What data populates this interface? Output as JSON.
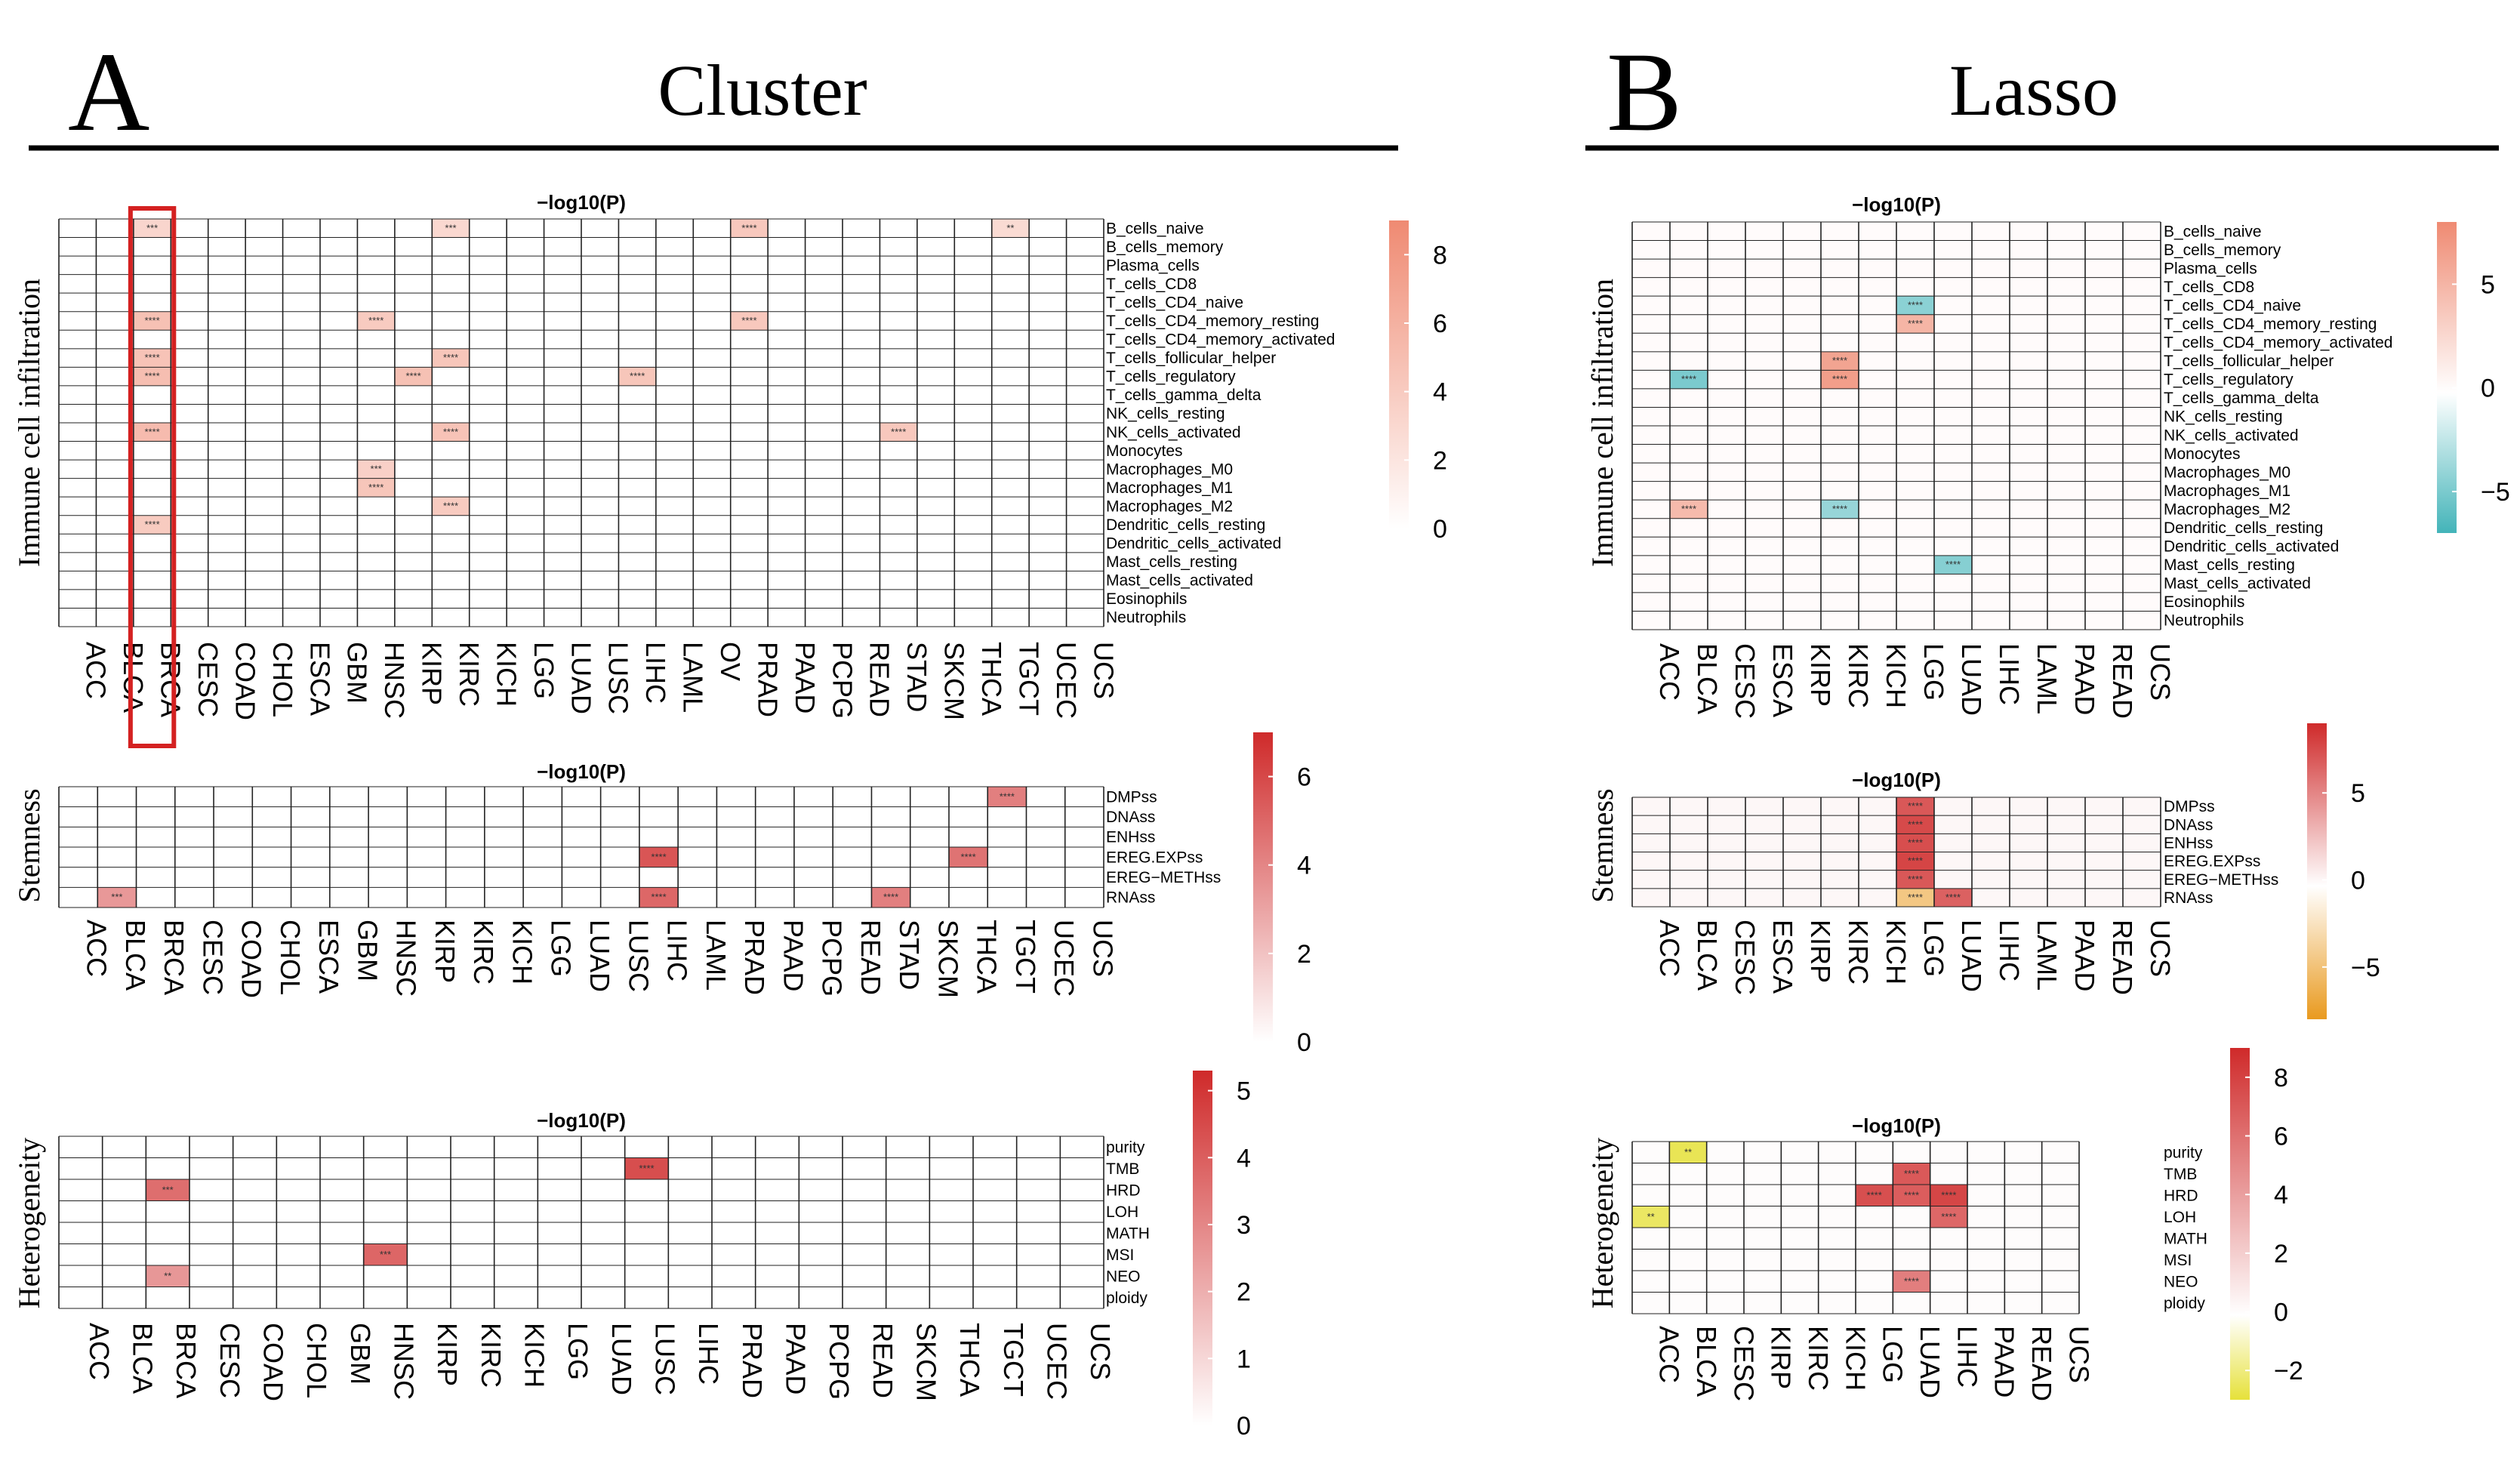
{
  "panels": [
    {
      "letter": "A",
      "title": "Cluster"
    },
    {
      "letter": "B",
      "title": "Lasso"
    }
  ],
  "chart_data": [
    {
      "type": "heatmap",
      "id": "A1",
      "panel": "A",
      "title": "−log10(P)",
      "ylabel": "Immune cell infiltration",
      "colorscale": "white-to-salmon",
      "legend_ticks": [
        0,
        2,
        4,
        6,
        8
      ],
      "vmin": 0,
      "vmax": 9,
      "rows": [
        "B_cells_naive",
        "B_cells_memory",
        "Plasma_cells",
        "T_cells_CD8",
        "T_cells_CD4_naive",
        "T_cells_CD4_memory_resting",
        "T_cells_CD4_memory_activated",
        "T_cells_follicular_helper",
        "T_cells_regulatory",
        "T_cells_gamma_delta",
        "NK_cells_resting",
        "NK_cells_activated",
        "Monocytes",
        "Macrophages_M0",
        "Macrophages_M1",
        "Macrophages_M2",
        "Dendritic_cells_resting",
        "Dendritic_cells_activated",
        "Mast_cells_resting",
        "Mast_cells_activated",
        "Eosinophils",
        "Neutrophils"
      ],
      "columns": [
        "ACC",
        "BLCA",
        "BRCA",
        "CESC",
        "COAD",
        "CHOL",
        "ESCA",
        "GBM",
        "HNSC",
        "KIRP",
        "KIRC",
        "KICH",
        "LGG",
        "LUAD",
        "LUSC",
        "LIHC",
        "LAML",
        "OV",
        "PRAD",
        "PAAD",
        "PCPG",
        "READ",
        "STAD",
        "SKCM",
        "THCA",
        "TGCT",
        "UCEC",
        "UCS"
      ],
      "highlight_column": "BRCA",
      "approximate_nonzero_cells": [
        [
          "B_cells_naive",
          "BRCA",
          3.2
        ],
        [
          "B_cells_naive",
          "KIRC",
          3.0
        ],
        [
          "B_cells_naive",
          "PRAD",
          4.2
        ],
        [
          "B_cells_naive",
          "TGCT",
          2.8
        ],
        [
          "T_cells_CD4_memory_resting",
          "BRCA",
          4.8
        ],
        [
          "T_cells_CD4_memory_resting",
          "HNSC",
          4.0
        ],
        [
          "T_cells_CD4_memory_resting",
          "PRAD",
          4.2
        ],
        [
          "T_cells_follicular_helper",
          "BRCA",
          4.6
        ],
        [
          "T_cells_follicular_helper",
          "KIRC",
          4.4
        ],
        [
          "T_cells_regulatory",
          "BRCA",
          5.0
        ],
        [
          "T_cells_regulatory",
          "KIRP",
          4.8
        ],
        [
          "T_cells_regulatory",
          "LIHC",
          4.4
        ],
        [
          "NK_cells_activated",
          "BRCA",
          5.2
        ],
        [
          "NK_cells_activated",
          "KIRC",
          4.6
        ],
        [
          "NK_cells_activated",
          "STAD",
          4.2
        ],
        [
          "Macrophages_M0",
          "HNSC",
          3.6
        ],
        [
          "Macrophages_M1",
          "HNSC",
          4.4
        ],
        [
          "Macrophages_M2",
          "KIRC",
          4.0
        ],
        [
          "Dendritic_cells_resting",
          "BRCA",
          4.0
        ]
      ]
    },
    {
      "type": "heatmap",
      "id": "A2",
      "panel": "A",
      "title": "−log10(P)",
      "ylabel": "Stemness",
      "colorscale": "white-to-red",
      "legend_ticks": [
        0,
        2,
        4,
        6
      ],
      "vmin": 0,
      "vmax": 7,
      "rows": [
        "DMPss",
        "DNAss",
        "ENHss",
        "EREG.EXPss",
        "EREG−METHss",
        "RNAss"
      ],
      "columns": [
        "ACC",
        "BLCA",
        "BRCA",
        "CESC",
        "COAD",
        "CHOL",
        "ESCA",
        "GBM",
        "HNSC",
        "KIRP",
        "KIRC",
        "KICH",
        "LGG",
        "LUAD",
        "LUSC",
        "LIHC",
        "LAML",
        "PRAD",
        "PAAD",
        "PCPG",
        "READ",
        "STAD",
        "SKCM",
        "THCA",
        "TGCT",
        "UCEC",
        "UCS"
      ],
      "approximate_nonzero_cells": [
        [
          "DMPss",
          "TGCT",
          4.2
        ],
        [
          "EREG.EXPss",
          "LIHC",
          5.6
        ],
        [
          "EREG.EXPss",
          "THCA",
          4.6
        ],
        [
          "RNAss",
          "LIHC",
          5.0
        ],
        [
          "RNAss",
          "STAD",
          4.2
        ],
        [
          "RNAss",
          "BLCA",
          3.4
        ]
      ]
    },
    {
      "type": "heatmap",
      "id": "A3",
      "panel": "A",
      "title": "−log10(P)",
      "ylabel": "Heterogeneity",
      "colorscale": "white-to-red",
      "legend_ticks": [
        0,
        1,
        2,
        3,
        4,
        5
      ],
      "vmin": 0,
      "vmax": 5.3,
      "rows": [
        "purity",
        "TMB",
        "HRD",
        "LOH",
        "MATH",
        "MSI",
        "NEO",
        "ploidy"
      ],
      "columns": [
        "ACC",
        "BLCA",
        "BRCA",
        "CESC",
        "COAD",
        "CHOL",
        "GBM",
        "HNSC",
        "KIRP",
        "KIRC",
        "KICH",
        "LGG",
        "LUAD",
        "LUSC",
        "LIHC",
        "PRAD",
        "PAAD",
        "PCPG",
        "READ",
        "SKCM",
        "THCA",
        "TGCT",
        "UCEC",
        "UCS"
      ],
      "approximate_nonzero_cells": [
        [
          "TMB",
          "LUSC",
          4.4
        ],
        [
          "HRD",
          "BRCA",
          3.6
        ],
        [
          "MSI",
          "HNSC",
          3.8
        ],
        [
          "NEO",
          "BRCA",
          2.6
        ]
      ]
    },
    {
      "type": "heatmap",
      "id": "B1",
      "panel": "B",
      "title": "−log10(P)",
      "ylabel": "Immune cell infiltration",
      "colorscale": "teal-white-salmon",
      "legend_ticks": [
        5,
        0,
        -5
      ],
      "vmin": -7,
      "vmax": 8,
      "rows": [
        "B_cells_naive",
        "B_cells_memory",
        "Plasma_cells",
        "T_cells_CD8",
        "T_cells_CD4_naive",
        "T_cells_CD4_memory_resting",
        "T_cells_CD4_memory_activated",
        "T_cells_follicular_helper",
        "T_cells_regulatory",
        "T_cells_gamma_delta",
        "NK_cells_resting",
        "NK_cells_activated",
        "Monocytes",
        "Macrophages_M0",
        "Macrophages_M1",
        "Macrophages_M2",
        "Dendritic_cells_resting",
        "Dendritic_cells_activated",
        "Mast_cells_resting",
        "Mast_cells_activated",
        "Eosinophils",
        "Neutrophils"
      ],
      "columns": [
        "ACC",
        "BLCA",
        "CESC",
        "ESCA",
        "KIRP",
        "KIRC",
        "KICH",
        "LGG",
        "LUAD",
        "LIHC",
        "LAML",
        "PAAD",
        "READ",
        "UCS"
      ],
      "approximate_nonzero_cells": [
        [
          "T_cells_follicular_helper",
          "KIRC",
          6.2
        ],
        [
          "T_cells_regulatory",
          "KIRC",
          6.6
        ],
        [
          "T_cells_regulatory",
          "BLCA",
          -5.0
        ],
        [
          "T_cells_CD4_memory_resting",
          "LGG",
          5.0
        ],
        [
          "T_cells_CD4_naive",
          "LGG",
          -4.4
        ],
        [
          "Mast_cells_resting",
          "LUAD",
          -4.6
        ],
        [
          "Macrophages_M2",
          "BLCA",
          4.6
        ],
        [
          "Macrophages_M2",
          "KIRC",
          -4.0
        ]
      ]
    },
    {
      "type": "heatmap",
      "id": "B2",
      "panel": "B",
      "title": "−log10(P)",
      "ylabel": "Stemness",
      "colorscale": "orange-white-red",
      "legend_ticks": [
        5,
        0,
        -5
      ],
      "vmin": -8,
      "vmax": 9,
      "rows": [
        "DMPss",
        "DNAss",
        "ENHss",
        "EREG.EXPss",
        "EREG−METHss",
        "RNAss"
      ],
      "columns": [
        "ACC",
        "BLCA",
        "CESC",
        "ESCA",
        "KIRP",
        "KIRC",
        "KICH",
        "LGG",
        "LUAD",
        "LIHC",
        "LAML",
        "PAAD",
        "READ",
        "UCS"
      ],
      "approximate_nonzero_cells": [
        [
          "DMPss",
          "LGG",
          7.0
        ],
        [
          "DNAss",
          "LGG",
          7.6
        ],
        [
          "ENHss",
          "LGG",
          7.4
        ],
        [
          "EREG.EXPss",
          "LGG",
          7.8
        ],
        [
          "EREG−METHss",
          "LGG",
          7.0
        ],
        [
          "RNAss",
          "LGG",
          -4.6
        ],
        [
          "RNAss",
          "LUAD",
          6.6
        ]
      ]
    },
    {
      "type": "heatmap",
      "id": "B3",
      "panel": "B",
      "title": "−log10(P)",
      "ylabel": "Heterogeneity",
      "colorscale": "yellow-white-red",
      "legend_ticks": [
        8,
        6,
        4,
        2,
        0,
        -2
      ],
      "vmin": -3,
      "vmax": 9,
      "rows": [
        "purity",
        "TMB",
        "HRD",
        "LOH",
        "MATH",
        "MSI",
        "NEO",
        "ploidy"
      ],
      "columns": [
        "ACC",
        "BLCA",
        "CESC",
        "KIRP",
        "KIRC",
        "KICH",
        "LGG",
        "LUAD",
        "LIHC",
        "PAAD",
        "READ",
        "UCS"
      ],
      "approximate_nonzero_cells": [
        [
          "purity",
          "BLCA",
          -2.6
        ],
        [
          "TMB",
          "LUAD",
          7.0
        ],
        [
          "HRD",
          "LGG",
          7.4
        ],
        [
          "HRD",
          "LUAD",
          6.8
        ],
        [
          "HRD",
          "LIHC",
          7.8
        ],
        [
          "LOH",
          "LIHC",
          6.4
        ],
        [
          "LOH",
          "ACC",
          -2.4
        ],
        [
          "NEO",
          "LUAD",
          5.4
        ]
      ]
    }
  ]
}
